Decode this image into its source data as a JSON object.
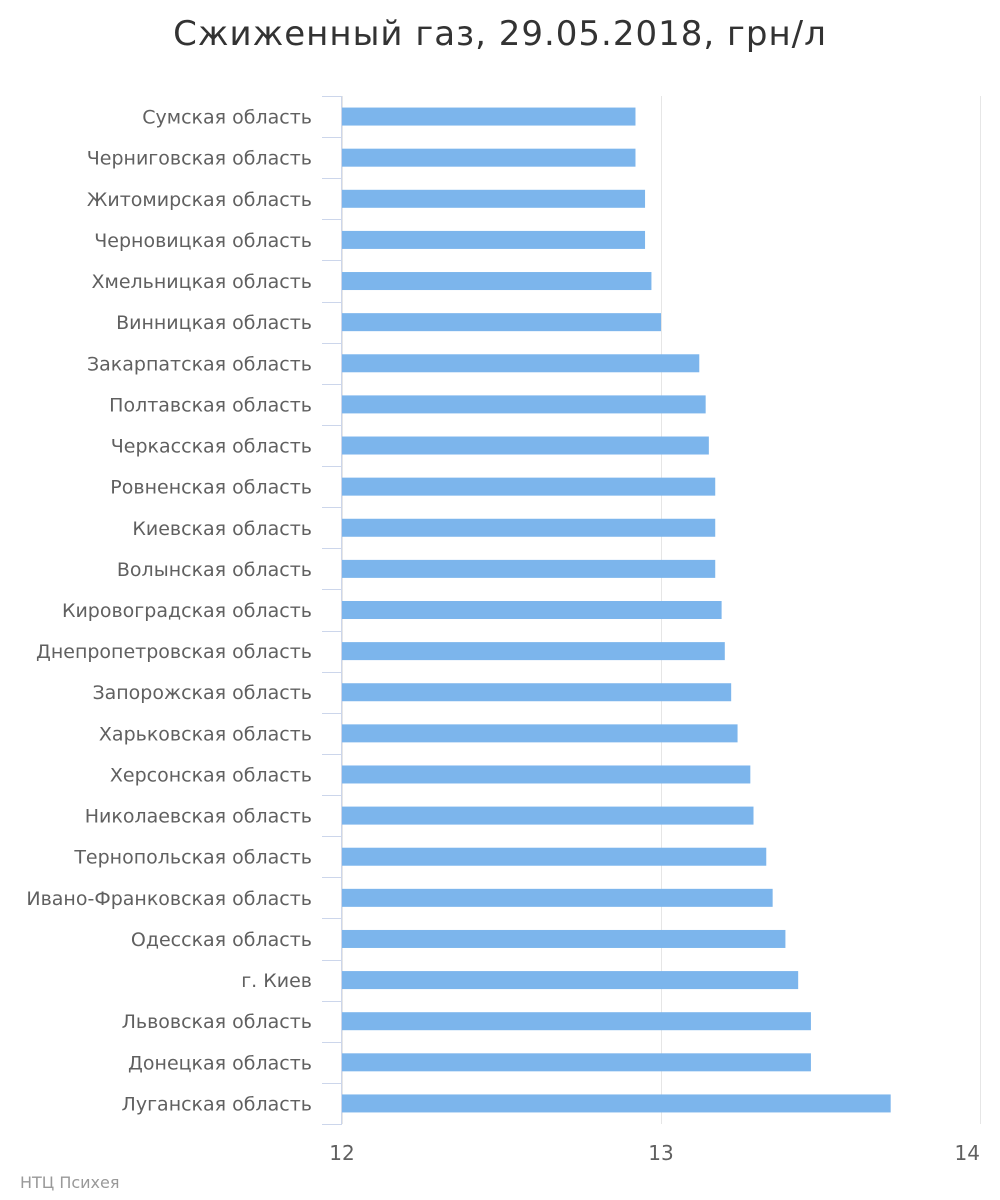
{
  "chart_data": {
    "type": "bar",
    "orientation": "horizontal",
    "title": "Сжиженный газ, 29.05.2018, грн/л",
    "credit": "НТЦ Психея",
    "xlim": [
      12,
      14
    ],
    "ticks": [
      "12",
      "13",
      "14"
    ],
    "tick_values": [
      12,
      13,
      14
    ],
    "grid": true,
    "bar_color": "#7cb5ec",
    "categories": [
      "Сумская область",
      "Черниговская область",
      "Житомирская область",
      "Черновицкая область",
      "Хмельницкая область",
      "Винницкая область",
      "Закарпатская область",
      "Полтавская область",
      "Черкасская область",
      "Ровненская область",
      "Киевская область",
      "Волынская область",
      "Кировоградская область",
      "Днепропетровская область",
      "Запорожская область",
      "Харьковская область",
      "Херсонская область",
      "Николаевская область",
      "Тернопольская область",
      "Ивано-Франковская область",
      "Одесская область",
      "г. Киев",
      "Львовская область",
      "Донецкая область",
      "Луганская область"
    ],
    "values": [
      12.92,
      12.92,
      12.95,
      12.95,
      12.97,
      13.0,
      13.12,
      13.14,
      13.15,
      13.17,
      13.17,
      13.17,
      13.19,
      13.2,
      13.22,
      13.24,
      13.28,
      13.29,
      13.33,
      13.35,
      13.39,
      13.43,
      13.47,
      13.47,
      13.72
    ]
  }
}
